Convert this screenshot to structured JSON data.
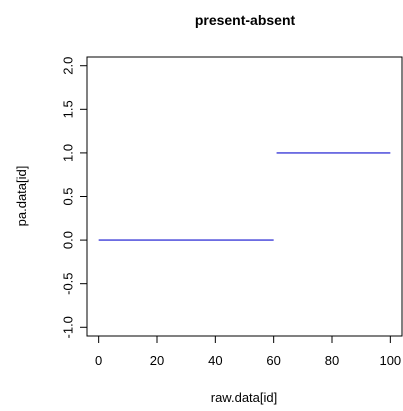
{
  "chart_data": {
    "type": "line",
    "title": "present-absent",
    "xlabel": "raw.data[id]",
    "ylabel": "pa.data[id]",
    "xlim": [
      -4,
      104
    ],
    "ylim": [
      -1.1,
      2.1
    ],
    "x_ticks": [
      0,
      20,
      40,
      60,
      80,
      100
    ],
    "x_tick_labels": [
      "0",
      "20",
      "40",
      "60",
      "80",
      "100"
    ],
    "y_ticks": [
      -1.0,
      -0.5,
      0.0,
      0.5,
      1.0,
      1.5,
      2.0
    ],
    "y_tick_labels": [
      "-1.0",
      "-0.5",
      "0.0",
      "0.5",
      "1.0",
      "1.5",
      "2.0"
    ],
    "grid": false,
    "series": [
      {
        "segments": [
          {
            "x": [
              0,
              60
            ],
            "y": [
              0,
              0
            ]
          },
          {
            "x": [
              61,
              100
            ],
            "y": [
              1,
              1
            ]
          }
        ],
        "color": "#3c3cd8"
      }
    ]
  }
}
